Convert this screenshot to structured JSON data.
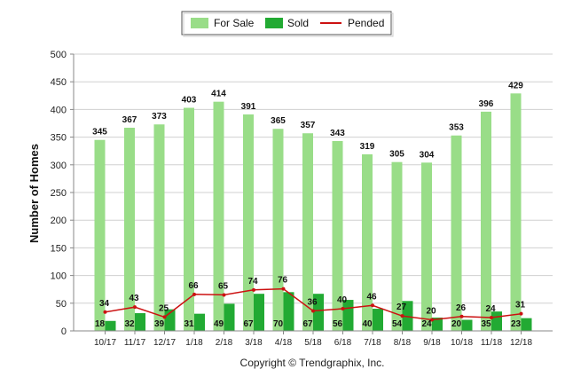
{
  "chart_data": {
    "type": "bar",
    "categories": [
      "10/17",
      "11/17",
      "12/17",
      "1/18",
      "2/18",
      "3/18",
      "4/18",
      "5/18",
      "6/18",
      "7/18",
      "8/18",
      "9/18",
      "10/18",
      "11/18",
      "12/18"
    ],
    "series": [
      {
        "name": "For Sale",
        "type": "bar",
        "color": "#99dd88",
        "values": [
          345,
          367,
          373,
          403,
          414,
          391,
          365,
          357,
          343,
          319,
          305,
          304,
          353,
          396,
          429
        ]
      },
      {
        "name": "Sold",
        "type": "bar",
        "color": "#22aa33",
        "values": [
          18,
          32,
          39,
          31,
          49,
          67,
          70,
          67,
          56,
          40,
          54,
          24,
          20,
          35,
          23
        ]
      },
      {
        "name": "Pended",
        "type": "line",
        "color": "#cc1111",
        "values": [
          34,
          43,
          25,
          66,
          65,
          74,
          76,
          36,
          40,
          46,
          27,
          20,
          26,
          24,
          31
        ]
      }
    ],
    "ylabel": "Number of Homes",
    "xlabel": "",
    "ylim": [
      0,
      500
    ],
    "yticks": [
      0,
      50,
      100,
      150,
      200,
      250,
      300,
      350,
      400,
      450,
      500
    ],
    "grid": true,
    "legend": "top-center"
  },
  "footer": {
    "copyright": "Copyright © Trendgraphix, Inc."
  }
}
